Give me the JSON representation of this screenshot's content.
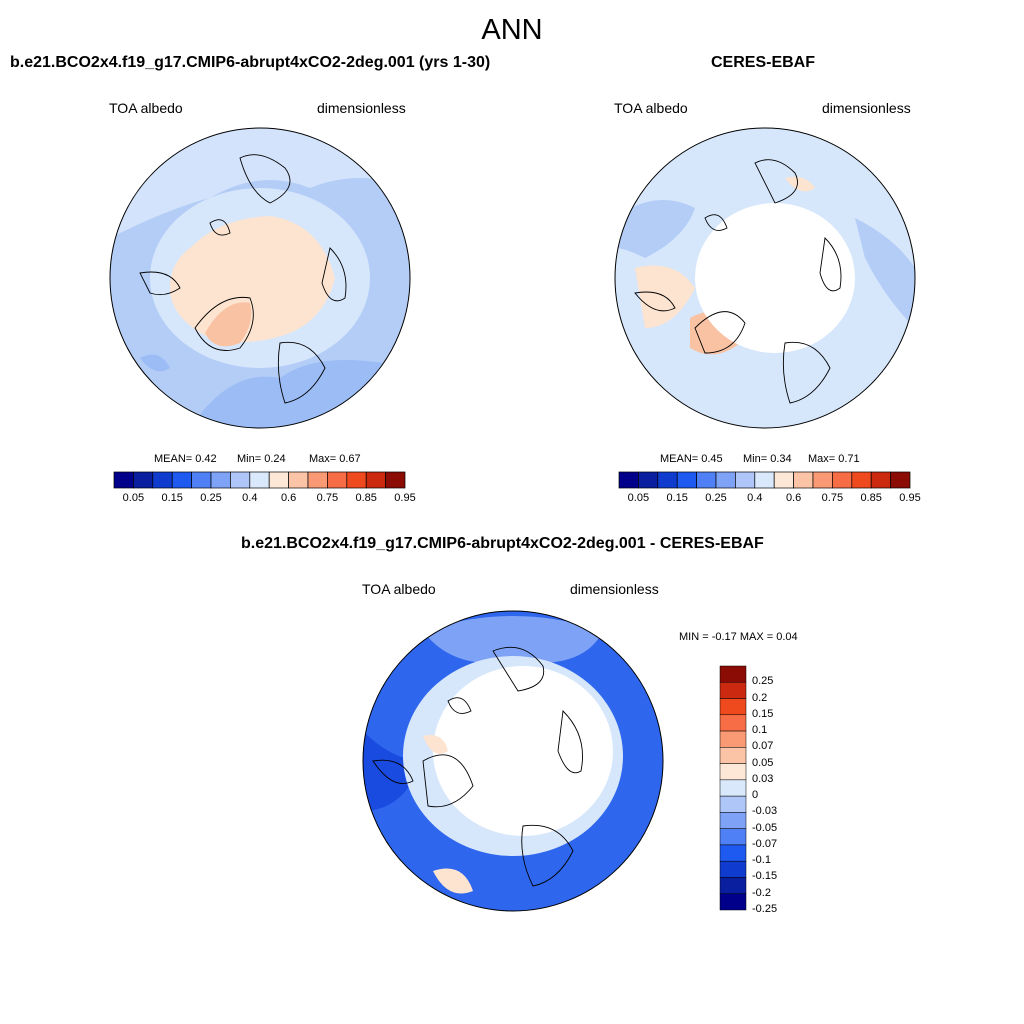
{
  "figure": {
    "title": "ANN"
  },
  "panels": {
    "model": {
      "title": "b.e21.BCO2x4.f19_g17.CMIP6-abrupt4xCO2-2deg.001 (yrs 1-30)",
      "left_label": "TOA albedo",
      "right_label": "dimensionless",
      "stats": {
        "mean": "MEAN=   0.42",
        "min": "Min=   0.24",
        "max": "Max=   0.67"
      }
    },
    "obs": {
      "title": "CERES-EBAF",
      "left_label": "TOA albedo",
      "right_label": "dimensionless",
      "stats": {
        "mean": "MEAN=   0.45",
        "min": "Min=   0.34",
        "max": "Max=   0.71"
      }
    },
    "diff": {
      "title": "b.e21.BCO2x4.f19_g17.CMIP6-abrupt4xCO2-2deg.001 - CERES-EBAF",
      "left_label": "TOA albedo",
      "right_label": "dimensionless",
      "minmax": "MIN =  -0.17 MAX =   0.04"
    }
  },
  "colorbars": {
    "abs": {
      "colors": [
        "#00008b",
        "#0a1fa0",
        "#0f3ccf",
        "#1f5af0",
        "#4f80f5",
        "#7ea2f5",
        "#aec6f8",
        "#d9e8fb",
        "#fde8d8",
        "#fcc4a6",
        "#fa9a74",
        "#f76d45",
        "#ef4a1e",
        "#cc2a10",
        "#8b0c05"
      ],
      "labels": [
        "0.05",
        "0.15",
        "0.25",
        "0.4",
        "0.6",
        "0.75",
        "0.85",
        "0.95"
      ]
    },
    "diff": {
      "colors": [
        "#00008b",
        "#0a1fa0",
        "#0f3ccf",
        "#1f5af0",
        "#4f80f5",
        "#7ea2f5",
        "#aec6f8",
        "#d9e8fb",
        "#fde8d8",
        "#fcc4a6",
        "#fa9a74",
        "#f76d45",
        "#ef4a1e",
        "#cc2a10",
        "#8b0c05"
      ],
      "labels": [
        "-0.25",
        "-0.2",
        "-0.15",
        "-0.1",
        "-0.07",
        "-0.05",
        "-0.03",
        "0",
        "0.03",
        "0.05",
        "0.07",
        "0.1",
        "0.15",
        "0.2",
        "0.25"
      ]
    }
  },
  "map_colors": {
    "ocean_low": "#b3cdf7",
    "ocean_mid": "#9bbcf4",
    "light_blue": "#d6e6fb",
    "peach": "#fde4d0",
    "salmon": "#f9c2a3",
    "white": "#ffffff",
    "diff_blue": "#2f66ee",
    "diff_mid": "#7ea2f5",
    "diff_dark": "#1a4be0"
  }
}
